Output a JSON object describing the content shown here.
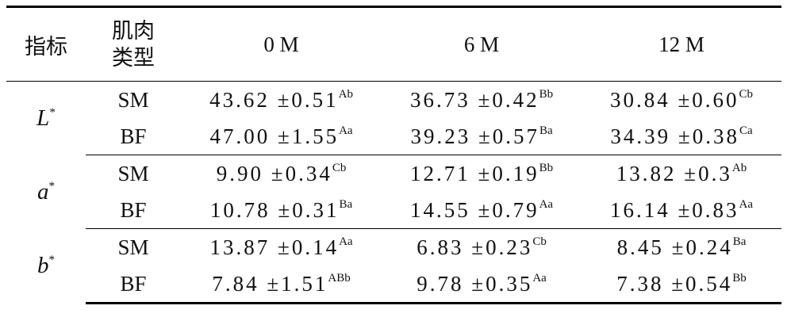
{
  "table": {
    "headers": [
      "指标",
      "肌肉类型",
      "0 M",
      "6 M",
      "12 M"
    ],
    "groups": [
      {
        "indicator": "L",
        "indicator_sup": "*",
        "rows": [
          {
            "muscle": "SM",
            "cells": [
              {
                "value": "43.62 ±0.51",
                "sig": "Ab"
              },
              {
                "value": "36.73 ±0.42",
                "sig": "Bb"
              },
              {
                "value": "30.84 ±0.60",
                "sig": "Cb"
              }
            ]
          },
          {
            "muscle": "BF",
            "cells": [
              {
                "value": "47.00 ±1.55",
                "sig": "Aa"
              },
              {
                "value": "39.23 ±0.57",
                "sig": "Ba"
              },
              {
                "value": "34.39 ±0.38",
                "sig": "Ca"
              }
            ]
          }
        ]
      },
      {
        "indicator": "a",
        "indicator_sup": "*",
        "rows": [
          {
            "muscle": "SM",
            "cells": [
              {
                "value": "9.90 ±0.34",
                "sig": "Cb"
              },
              {
                "value": "12.71 ±0.19",
                "sig": "Bb"
              },
              {
                "value": "13.82 ±0.3",
                "sig": "Ab"
              }
            ]
          },
          {
            "muscle": "BF",
            "cells": [
              {
                "value": "10.78 ±0.31",
                "sig": "Ba"
              },
              {
                "value": "14.55 ±0.79",
                "sig": "Aa"
              },
              {
                "value": "16.14 ±0.83",
                "sig": "Aa"
              }
            ]
          }
        ]
      },
      {
        "indicator": "b",
        "indicator_sup": "*",
        "rows": [
          {
            "muscle": "SM",
            "cells": [
              {
                "value": "13.87 ±0.14",
                "sig": "Aa"
              },
              {
                "value": "6.83 ±0.23",
                "sig": "Cb"
              },
              {
                "value": "8.45 ±0.24",
                "sig": "Ba"
              }
            ]
          },
          {
            "muscle": "BF",
            "cells": [
              {
                "value": "7.84 ±1.51",
                "sig": "ABb"
              },
              {
                "value": "9.78 ±0.35",
                "sig": "Aa"
              },
              {
                "value": "7.38 ±0.54",
                "sig": "Bb"
              }
            ]
          }
        ]
      }
    ]
  }
}
